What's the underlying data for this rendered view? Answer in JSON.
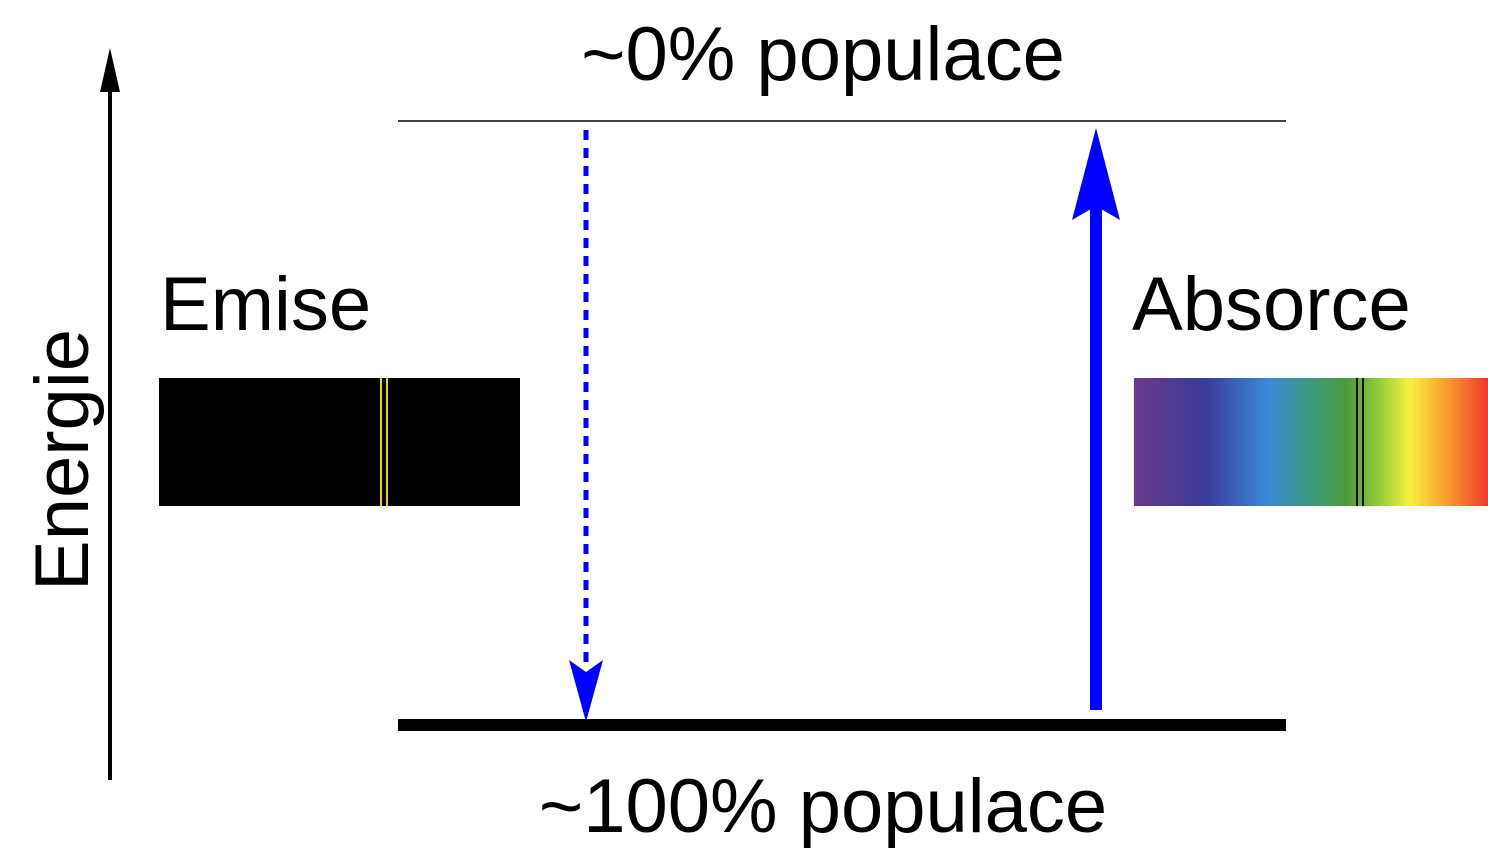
{
  "axis_label": "Energie",
  "upper_level": {
    "label": "~0% populace"
  },
  "lower_level": {
    "label": "~100% populace"
  },
  "emission": {
    "label": "Emise"
  },
  "absorption": {
    "label": "Absorce"
  }
}
